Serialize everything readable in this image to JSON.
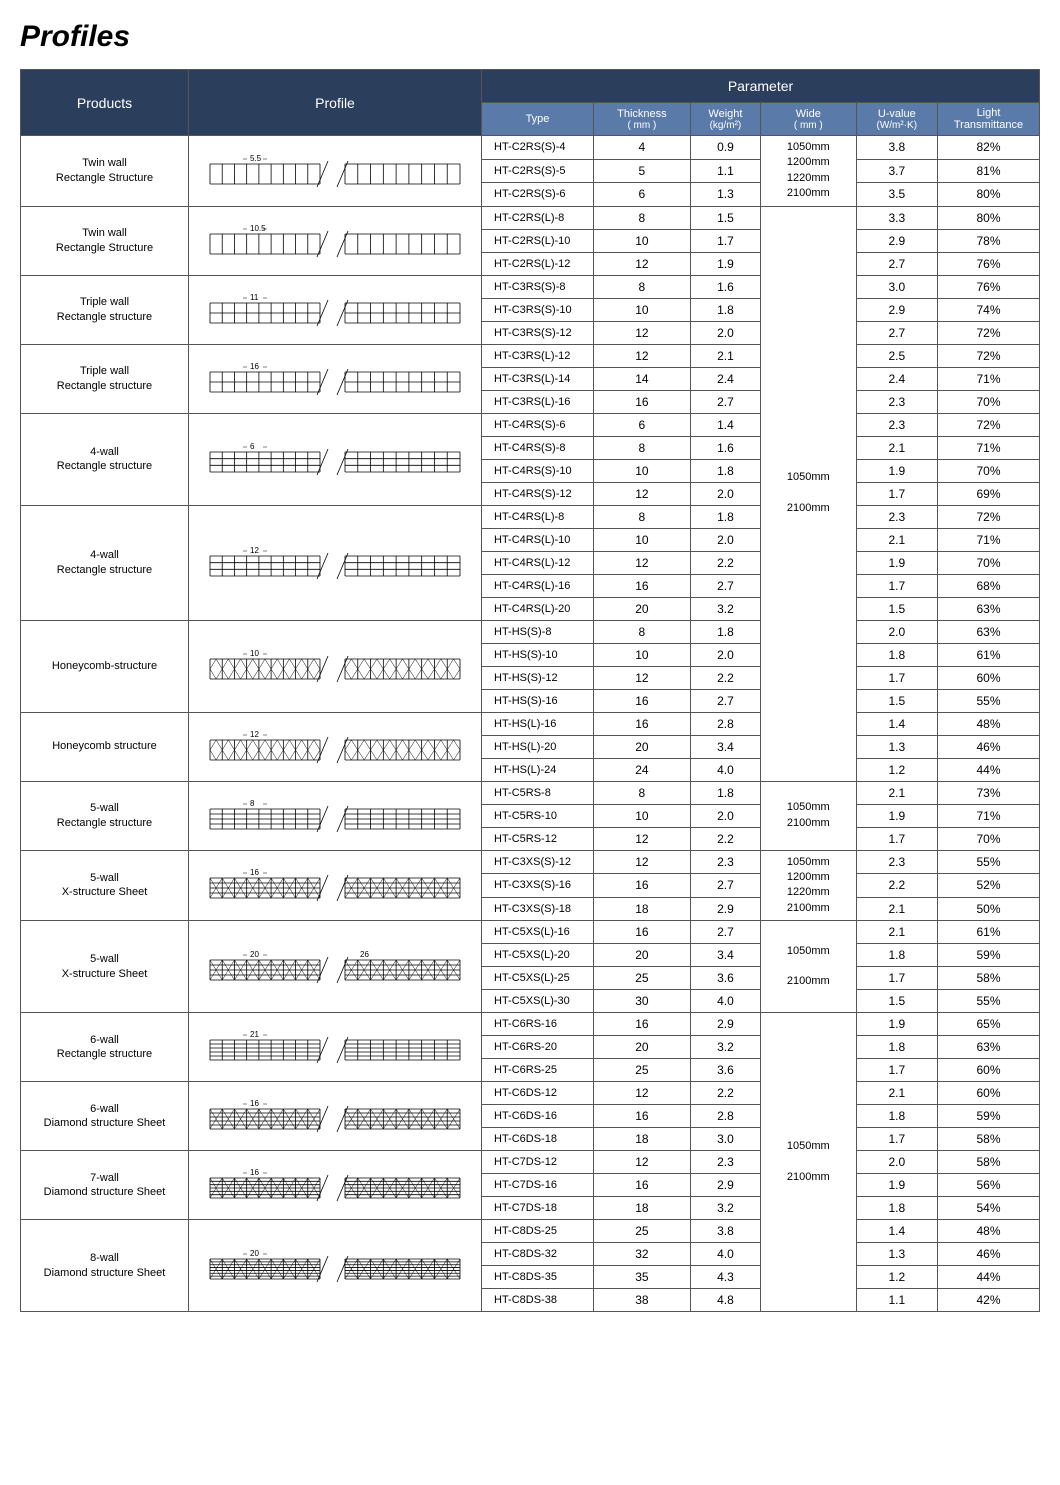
{
  "title": "Profiles",
  "headers": {
    "products": "Products",
    "profile": "Profile",
    "parameter": "Parameter",
    "type": "Type",
    "thickness": "Thickness",
    "thickness_unit": "( mm )",
    "weight": "Weight",
    "weight_unit": "(kg/m²)",
    "wide": "Wide",
    "wide_unit": "( mm )",
    "uvalue": "U-value",
    "uvalue_unit": "(W/m²·K)",
    "light": "Light Transmittance"
  },
  "colors": {
    "dark_header_bg": "#2b3e5c",
    "blue_header_bg": "#5a7aaa",
    "header_text": "#ffffff",
    "border": "#555555",
    "page_bg": "#ffffff"
  },
  "fonts": {
    "title_size": 30,
    "header_size": 14,
    "subheader_size": 11,
    "cell_size": 12,
    "product_size": 11
  },
  "groups": [
    {
      "product": "Twin wall\nRectangle Structure",
      "profile": {
        "type": "rect-grid",
        "walls": 2,
        "spacing": "5.5"
      },
      "wide": "1050mm\n1200mm\n1220mm\n2100mm",
      "rows": [
        {
          "type": "HT-C2RS(S)-4",
          "th": "4",
          "wt": "0.9",
          "uv": "3.8",
          "lt": "82%"
        },
        {
          "type": "HT-C2RS(S)-5",
          "th": "5",
          "wt": "1.1",
          "uv": "3.7",
          "lt": "81%"
        },
        {
          "type": "HT-C2RS(S)-6",
          "th": "6",
          "wt": "1.3",
          "uv": "3.5",
          "lt": "80%"
        }
      ]
    },
    {
      "product": "Twin wall\nRectangle Structure",
      "profile": {
        "type": "rect-grid",
        "walls": 2,
        "spacing": "10.5"
      },
      "rows": [
        {
          "type": "HT-C2RS(L)-8",
          "th": "8",
          "wt": "1.5",
          "uv": "3.3",
          "lt": "80%"
        },
        {
          "type": "HT-C2RS(L)-10",
          "th": "10",
          "wt": "1.7",
          "uv": "2.9",
          "lt": "78%"
        },
        {
          "type": "HT-C2RS(L)-12",
          "th": "12",
          "wt": "1.9",
          "uv": "2.7",
          "lt": "76%"
        }
      ]
    },
    {
      "product": "Triple wall\nRectangle structure",
      "profile": {
        "type": "rect-grid",
        "walls": 3,
        "spacing": "11"
      },
      "rows": [
        {
          "type": "HT-C3RS(S)-8",
          "th": "8",
          "wt": "1.6",
          "uv": "3.0",
          "lt": "76%"
        },
        {
          "type": "HT-C3RS(S)-10",
          "th": "10",
          "wt": "1.8",
          "uv": "2.9",
          "lt": "74%"
        },
        {
          "type": "HT-C3RS(S)-12",
          "th": "12",
          "wt": "2.0",
          "uv": "2.7",
          "lt": "72%"
        }
      ]
    },
    {
      "product": "Triple wall\nRectangle structure",
      "profile": {
        "type": "rect-grid",
        "walls": 3,
        "spacing": "16"
      },
      "rows": [
        {
          "type": "HT-C3RS(L)-12",
          "th": "12",
          "wt": "2.1",
          "uv": "2.5",
          "lt": "72%"
        },
        {
          "type": "HT-C3RS(L)-14",
          "th": "14",
          "wt": "2.4",
          "uv": "2.4",
          "lt": "71%"
        },
        {
          "type": "HT-C3RS(L)-16",
          "th": "16",
          "wt": "2.7",
          "uv": "2.3",
          "lt": "70%"
        }
      ]
    },
    {
      "product": "4-wall\nRectangle structure",
      "profile": {
        "type": "rect-grid",
        "walls": 4,
        "spacing": "6"
      },
      "rows": [
        {
          "type": "HT-C4RS(S)-6",
          "th": "6",
          "wt": "1.4",
          "uv": "2.3",
          "lt": "72%"
        },
        {
          "type": "HT-C4RS(S)-8",
          "th": "8",
          "wt": "1.6",
          "uv": "2.1",
          "lt": "71%"
        },
        {
          "type": "HT-C4RS(S)-10",
          "th": "10",
          "wt": "1.8",
          "uv": "1.9",
          "lt": "70%"
        },
        {
          "type": "HT-C4RS(S)-12",
          "th": "12",
          "wt": "2.0",
          "uv": "1.7",
          "lt": "69%"
        }
      ]
    },
    {
      "product": "4-wall\nRectangle structure",
      "profile": {
        "type": "rect-grid",
        "walls": 4,
        "spacing": "12"
      },
      "rows": [
        {
          "type": "HT-C4RS(L)-8",
          "th": "8",
          "wt": "1.8",
          "uv": "2.3",
          "lt": "72%"
        },
        {
          "type": "HT-C4RS(L)-10",
          "th": "10",
          "wt": "2.0",
          "uv": "2.1",
          "lt": "71%"
        },
        {
          "type": "HT-C4RS(L)-12",
          "th": "12",
          "wt": "2.2",
          "uv": "1.9",
          "lt": "70%"
        },
        {
          "type": "HT-C4RS(L)-16",
          "th": "16",
          "wt": "2.7",
          "uv": "1.7",
          "lt": "68%"
        },
        {
          "type": "HT-C4RS(L)-20",
          "th": "20",
          "wt": "3.2",
          "uv": "1.5",
          "lt": "63%"
        }
      ]
    },
    {
      "product": "Honeycomb-structure",
      "profile": {
        "type": "honeycomb",
        "spacing": "10"
      },
      "rows": [
        {
          "type": "HT-HS(S)-8",
          "th": "8",
          "wt": "1.8",
          "uv": "2.0",
          "lt": "63%"
        },
        {
          "type": "HT-HS(S)-10",
          "th": "10",
          "wt": "2.0",
          "uv": "1.8",
          "lt": "61%"
        },
        {
          "type": "HT-HS(S)-12",
          "th": "12",
          "wt": "2.2",
          "uv": "1.7",
          "lt": "60%"
        },
        {
          "type": "HT-HS(S)-16",
          "th": "16",
          "wt": "2.7",
          "uv": "1.5",
          "lt": "55%"
        }
      ]
    },
    {
      "product": "Honeycomb structure",
      "profile": {
        "type": "honeycomb",
        "spacing": "12"
      },
      "rows": [
        {
          "type": "HT-HS(L)-16",
          "th": "16",
          "wt": "2.8",
          "uv": "1.4",
          "lt": "48%"
        },
        {
          "type": "HT-HS(L)-20",
          "th": "20",
          "wt": "3.4",
          "uv": "1.3",
          "lt": "46%"
        },
        {
          "type": "HT-HS(L)-24",
          "th": "24",
          "wt": "4.0",
          "uv": "1.2",
          "lt": "44%"
        }
      ],
      "wide_end": true
    },
    {
      "product": "5-wall\nRectangle structure",
      "profile": {
        "type": "rect-grid",
        "walls": 5,
        "spacing": "8"
      },
      "wide": "1050mm\n2100mm",
      "rows": [
        {
          "type": "HT-C5RS-8",
          "th": "8",
          "wt": "1.8",
          "uv": "2.1",
          "lt": "73%"
        },
        {
          "type": "HT-C5RS-10",
          "th": "10",
          "wt": "2.0",
          "uv": "1.9",
          "lt": "71%"
        },
        {
          "type": "HT-C5RS-12",
          "th": "12",
          "wt": "2.2",
          "uv": "1.7",
          "lt": "70%"
        }
      ]
    },
    {
      "product": "5-wall\nX-structure Sheet",
      "profile": {
        "type": "x-struct",
        "walls": 5,
        "spacing": "16"
      },
      "wide": "1050mm\n1200mm\n1220mm\n2100mm",
      "rows": [
        {
          "type": "HT-C3XS(S)-12",
          "th": "12",
          "wt": "2.3",
          "uv": "2.3",
          "lt": "55%"
        },
        {
          "type": "HT-C3XS(S)-16",
          "th": "16",
          "wt": "2.7",
          "uv": "2.2",
          "lt": "52%"
        },
        {
          "type": "HT-C3XS(S)-18",
          "th": "18",
          "wt": "2.9",
          "uv": "2.1",
          "lt": "50%"
        }
      ]
    },
    {
      "product": "5-wall\nX-structure Sheet",
      "profile": {
        "type": "x-struct",
        "walls": 5,
        "spacing": "20",
        "spacing2": "26"
      },
      "wide": "1050mm\n\n2100mm",
      "rows": [
        {
          "type": "HT-C5XS(L)-16",
          "th": "16",
          "wt": "2.7",
          "uv": "2.1",
          "lt": "61%"
        },
        {
          "type": "HT-C5XS(L)-20",
          "th": "20",
          "wt": "3.4",
          "uv": "1.8",
          "lt": "59%"
        },
        {
          "type": "HT-C5XS(L)-25",
          "th": "25",
          "wt": "3.6",
          "uv": "1.7",
          "lt": "58%"
        },
        {
          "type": "HT-C5XS(L)-30",
          "th": "30",
          "wt": "4.0",
          "uv": "1.5",
          "lt": "55%"
        }
      ]
    },
    {
      "product": "6-wall\nRectangle structure",
      "profile": {
        "type": "rect-grid",
        "walls": 6,
        "spacing": "21"
      },
      "rows": [
        {
          "type": "HT-C6RS-16",
          "th": "16",
          "wt": "2.9",
          "uv": "1.9",
          "lt": "65%"
        },
        {
          "type": "HT-C6RS-20",
          "th": "20",
          "wt": "3.2",
          "uv": "1.8",
          "lt": "63%"
        },
        {
          "type": "HT-C6RS-25",
          "th": "25",
          "wt": "3.6",
          "uv": "1.7",
          "lt": "60%"
        }
      ]
    },
    {
      "product": "6-wall\nDiamond structure Sheet",
      "profile": {
        "type": "diamond",
        "walls": 6,
        "spacing": "16"
      },
      "rows": [
        {
          "type": "HT-C6DS-12",
          "th": "12",
          "wt": "2.2",
          "uv": "2.1",
          "lt": "60%"
        },
        {
          "type": "HT-C6DS-16",
          "th": "16",
          "wt": "2.8",
          "uv": "1.8",
          "lt": "59%"
        },
        {
          "type": "HT-C6DS-18",
          "th": "18",
          "wt": "3.0",
          "uv": "1.7",
          "lt": "58%"
        }
      ]
    },
    {
      "product": "7-wall\nDiamond structure Sheet",
      "profile": {
        "type": "diamond",
        "walls": 7,
        "spacing": "16"
      },
      "rows": [
        {
          "type": "HT-C7DS-12",
          "th": "12",
          "wt": "2.3",
          "uv": "2.0",
          "lt": "58%"
        },
        {
          "type": "HT-C7DS-16",
          "th": "16",
          "wt": "2.9",
          "uv": "1.9",
          "lt": "56%"
        },
        {
          "type": "HT-C7DS-18",
          "th": "18",
          "wt": "3.2",
          "uv": "1.8",
          "lt": "54%"
        }
      ]
    },
    {
      "product": "8-wall\nDiamond structure Sheet",
      "profile": {
        "type": "diamond",
        "walls": 8,
        "spacing": "20"
      },
      "rows": [
        {
          "type": "HT-C8DS-25",
          "th": "25",
          "wt": "3.8",
          "uv": "1.4",
          "lt": "48%"
        },
        {
          "type": "HT-C8DS-32",
          "th": "32",
          "wt": "4.0",
          "uv": "1.3",
          "lt": "46%"
        },
        {
          "type": "HT-C8DS-35",
          "th": "35",
          "wt": "4.3",
          "uv": "1.2",
          "lt": "44%"
        },
        {
          "type": "HT-C8DS-38",
          "th": "38",
          "wt": "4.8",
          "uv": "1.1",
          "lt": "42%"
        }
      ],
      "wide_end": true
    },
    {
      "_wide_merge_11": {
        "wide": "1050mm\n\n2100mm"
      }
    },
    {
      "_wide_merge_1": {
        "wide": "1050mm\n\n2100mm"
      }
    }
  ],
  "wide_merges": [
    {
      "start": 1,
      "span": 28,
      "text": "1050mm\n\n2100mm"
    },
    {
      "start": 11,
      "span": 14,
      "text": "1050mm\n\n2100mm"
    }
  ]
}
